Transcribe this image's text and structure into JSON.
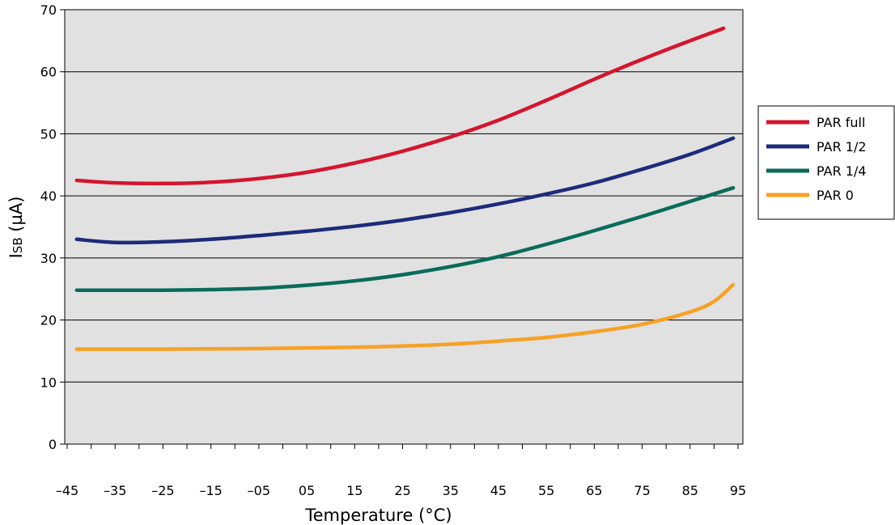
{
  "chart_data": {
    "type": "line",
    "xlabel": "Temperature (°C)",
    "ylabel_main": "I",
    "ylabel_sub": "SB",
    "ylabel_unit": " (µA)",
    "xlim": [
      -45,
      95
    ],
    "ylim": [
      0,
      70
    ],
    "x_ticks": [
      "–45",
      "–35",
      "–25",
      "–15",
      "–05",
      "05",
      "15",
      "25",
      "35",
      "45",
      "55",
      "65",
      "75",
      "85",
      "95"
    ],
    "y_ticks": [
      "0",
      "10",
      "20",
      "30",
      "40",
      "50",
      "60",
      "70"
    ],
    "grid": "horizontal",
    "plot_background": "#e1e1e1",
    "legend_position": "right",
    "series": [
      {
        "name": "PAR full",
        "color": "#d4152d",
        "x": [
          -43,
          -35,
          -25,
          -15,
          -5,
          5,
          15,
          25,
          35,
          45,
          55,
          65,
          75,
          85,
          92
        ],
        "y": [
          42.5,
          42.1,
          42.0,
          42.2,
          42.8,
          43.8,
          45.3,
          47.2,
          49.5,
          52.2,
          55.4,
          58.8,
          62.0,
          65.0,
          67.0
        ]
      },
      {
        "name": "PAR 1/2",
        "color": "#1c2b7a",
        "x": [
          -43,
          -35,
          -25,
          -15,
          -5,
          5,
          15,
          25,
          35,
          45,
          55,
          65,
          75,
          85,
          94
        ],
        "y": [
          33.0,
          32.5,
          32.6,
          33.0,
          33.6,
          34.3,
          35.1,
          36.1,
          37.3,
          38.7,
          40.3,
          42.1,
          44.3,
          46.7,
          49.3
        ]
      },
      {
        "name": "PAR 1/4",
        "color": "#0a6b5a",
        "x": [
          -43,
          -35,
          -25,
          -15,
          -5,
          5,
          15,
          25,
          35,
          45,
          55,
          65,
          75,
          85,
          94
        ],
        "y": [
          24.8,
          24.8,
          24.8,
          24.9,
          25.1,
          25.6,
          26.3,
          27.3,
          28.6,
          30.2,
          32.2,
          34.4,
          36.7,
          39.1,
          41.3
        ]
      },
      {
        "name": "PAR 0",
        "color": "#f7a125",
        "x": [
          -43,
          -35,
          -25,
          -15,
          -5,
          5,
          15,
          25,
          35,
          45,
          55,
          65,
          75,
          85,
          90,
          94
        ],
        "y": [
          15.3,
          15.3,
          15.3,
          15.35,
          15.4,
          15.5,
          15.6,
          15.8,
          16.1,
          16.6,
          17.2,
          18.1,
          19.3,
          21.3,
          23.0,
          25.7
        ]
      }
    ]
  }
}
